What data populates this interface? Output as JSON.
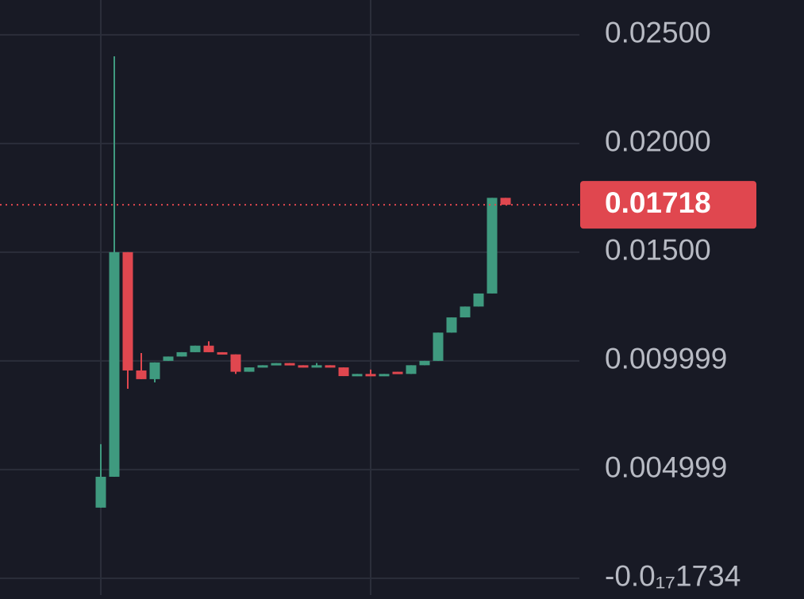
{
  "chart_data": {
    "type": "candlestick",
    "open": [
      0.00325,
      0.00467,
      0.015,
      0.00956,
      0.00916,
      0.01,
      0.0102,
      0.0104,
      0.0107,
      0.0104,
      0.0103,
      0.0095,
      0.0097,
      0.0098,
      0.0099,
      0.0098,
      0.0097,
      0.0098,
      0.0097,
      0.0093,
      0.0094,
      0.0093,
      0.0095,
      0.0094,
      0.0098,
      0.01,
      0.0113,
      0.012,
      0.0125,
      0.0131,
      0.0175
    ],
    "high": [
      0.00617,
      0.02401,
      0.015,
      0.01036,
      0.00993,
      0.0102,
      0.0104,
      0.0107,
      0.0109,
      0.0104,
      0.0103,
      0.0097,
      0.0098,
      0.0099,
      0.0099,
      0.0098,
      0.0099,
      0.0098,
      0.0097,
      0.0094,
      0.0096,
      0.0094,
      0.0095,
      0.0098,
      0.01,
      0.0113,
      0.012,
      0.0125,
      0.0131,
      0.0175,
      0.0175
    ],
    "low": [
      0.00325,
      0.00467,
      0.00872,
      0.00916,
      0.00901,
      0.01,
      0.0102,
      0.0104,
      0.0104,
      0.0103,
      0.0094,
      0.0095,
      0.0097,
      0.0098,
      0.0098,
      0.0097,
      0.0097,
      0.0097,
      0.0093,
      0.0093,
      0.0093,
      0.0093,
      0.0094,
      0.0094,
      0.0098,
      0.01,
      0.0113,
      0.012,
      0.0125,
      0.0131,
      0.01718
    ],
    "close": [
      0.00467,
      0.015,
      0.00956,
      0.00916,
      0.00993,
      0.0102,
      0.0104,
      0.0107,
      0.0104,
      0.0103,
      0.0095,
      0.0097,
      0.0098,
      0.0099,
      0.0098,
      0.0097,
      0.0098,
      0.0097,
      0.0093,
      0.0094,
      0.0093,
      0.0094,
      0.0094,
      0.0098,
      0.01,
      0.0113,
      0.012,
      0.0125,
      0.0131,
      0.0175,
      0.01718
    ],
    "up_color": "#3f9a7f",
    "down_color": "#e0474f",
    "last_price": 0.01718,
    "ylim": [
      -0.00077,
      0.0266
    ],
    "yticks": [
      {
        "value": -1.734e-18,
        "label": "-0.0₁₇1734"
      },
      0.004999,
      0.009999,
      {
        "value": 0.015,
        "label": "0.01500"
      },
      {
        "value": 0.02,
        "label": "0.02000"
      },
      {
        "value": 0.025,
        "label": "0.02500"
      }
    ],
    "grid": true
  }
}
